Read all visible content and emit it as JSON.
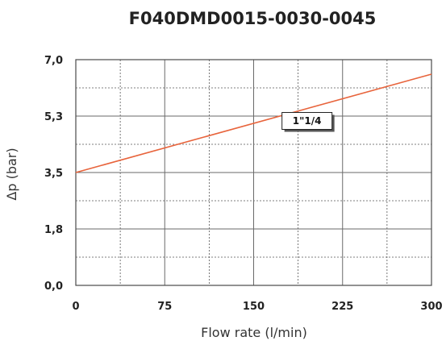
{
  "chart_data": {
    "type": "line",
    "title": "F040DMD0015-0030-0045",
    "xlabel": "Flow rate (l/min)",
    "ylabel": "Δp (bar)",
    "xlim": [
      0,
      300
    ],
    "ylim": [
      0,
      7.0
    ],
    "x_ticks": [
      "0",
      "75",
      "150",
      "225",
      "300"
    ],
    "y_ticks": [
      "0,0",
      "1,8",
      "3,5",
      "5,3",
      "7,0"
    ],
    "grid": true,
    "series": [
      {
        "name": "1\"1/4",
        "x": [
          0,
          300
        ],
        "y": [
          3.5,
          6.55
        ],
        "color": "#e8643c"
      }
    ],
    "annotations": [
      {
        "text": "1\"1/4",
        "x": 195,
        "y": 5.1
      }
    ]
  }
}
